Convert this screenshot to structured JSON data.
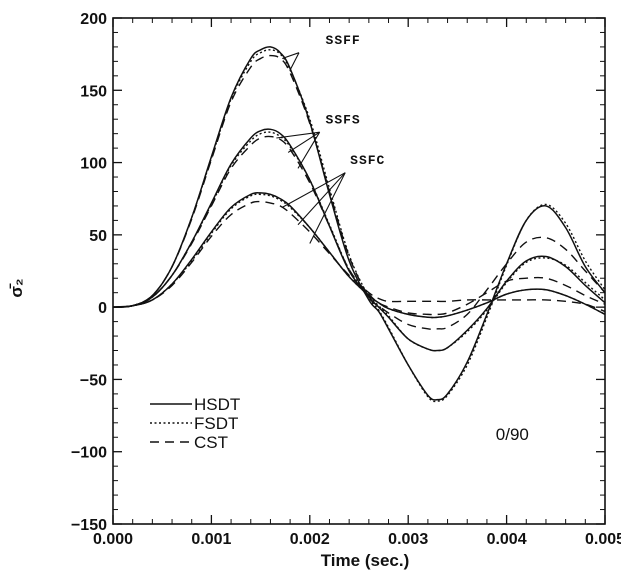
{
  "chart_data": {
    "type": "line",
    "title": "",
    "xlabel": "Time (sec.)",
    "ylabel": "σ̄₂",
    "xlim": [
      0,
      0.005
    ],
    "ylim": [
      -150,
      200
    ],
    "xticks": [
      0,
      0.001,
      0.002,
      0.003,
      0.004,
      0.005
    ],
    "xtick_labels": [
      "0.000",
      "0.001",
      "0.002",
      "0.003",
      "0.004",
      "0.005"
    ],
    "yticks": [
      -150,
      -100,
      -50,
      0,
      50,
      100,
      150,
      200
    ],
    "ytick_labels": [
      "-150",
      "-100",
      "-50",
      "0",
      "50",
      "100",
      "150",
      "200"
    ],
    "grid": false,
    "legend": {
      "placement": "lower-left",
      "entries": [
        {
          "label": "HSDT",
          "style": "solid"
        },
        {
          "label": "FSDT",
          "style": "dotted"
        },
        {
          "label": "CST",
          "style": "dashed"
        }
      ]
    },
    "annotations": [
      {
        "text": "SSFF",
        "target_group": "SSFF"
      },
      {
        "text": "SSFS",
        "target_group": "SSFS"
      },
      {
        "text": "SSFC",
        "target_group": "SSFC"
      },
      {
        "text": "0/90"
      }
    ],
    "x": [
      0,
      0.0002,
      0.0004,
      0.0006,
      0.0008,
      0.001,
      0.0012,
      0.0014,
      0.0015,
      0.0016,
      0.0017,
      0.0018,
      0.002,
      0.0022,
      0.0024,
      0.0026,
      0.0027,
      0.0028,
      0.003,
      0.0032,
      0.0033,
      0.0034,
      0.0036,
      0.0038,
      0.004,
      0.0042,
      0.0044,
      0.0046,
      0.0048,
      0.005
    ],
    "series": [
      {
        "group": "SSFF",
        "method": "HSDT",
        "style": "solid",
        "values": [
          0,
          1,
          8,
          28,
          62,
          104,
          145,
          172,
          178,
          180,
          176,
          165,
          128,
          78,
          32,
          5,
          -3,
          -15,
          -40,
          -61,
          -64,
          -60,
          -38,
          -5,
          30,
          60,
          70,
          55,
          28,
          10
        ]
      },
      {
        "group": "SSFF",
        "method": "FSDT",
        "style": "dotted",
        "values": [
          0,
          1,
          8,
          28,
          62,
          103,
          144,
          170,
          176,
          178,
          175,
          164,
          130,
          82,
          36,
          7,
          -2,
          -14,
          -40,
          -62,
          -65,
          -61,
          -40,
          -7,
          29,
          60,
          71,
          58,
          32,
          12
        ]
      },
      {
        "group": "SSFF",
        "method": "CST",
        "style": "dashed",
        "values": [
          0,
          1,
          8,
          28,
          61,
          102,
          142,
          166,
          172,
          174,
          172,
          162,
          127,
          80,
          35,
          7,
          1,
          -4,
          -12,
          -15,
          -15,
          -14,
          -5,
          12,
          30,
          45,
          48,
          40,
          25,
          10
        ]
      },
      {
        "group": "SSFS",
        "method": "HSDT",
        "style": "solid",
        "values": [
          0,
          1,
          7,
          22,
          45,
          72,
          99,
          117,
          122,
          123,
          120,
          112,
          88,
          56,
          25,
          7,
          0,
          -7,
          -22,
          -29,
          -30,
          -28,
          -16,
          -1,
          18,
          32,
          35,
          28,
          15,
          3
        ]
      },
      {
        "group": "SSFS",
        "method": "FSDT",
        "style": "dotted",
        "values": [
          0,
          1,
          7,
          22,
          45,
          71,
          98,
          115,
          120,
          121,
          118,
          111,
          88,
          57,
          26,
          8,
          1,
          -6,
          -22,
          -29,
          -30,
          -28,
          -17,
          -2,
          17,
          31,
          34,
          29,
          17,
          5
        ]
      },
      {
        "group": "SSFS",
        "method": "CST",
        "style": "dashed",
        "values": [
          0,
          1,
          7,
          22,
          44,
          70,
          96,
          112,
          117,
          118,
          116,
          109,
          86,
          56,
          26,
          9,
          3,
          0,
          -4,
          -5,
          -5,
          -4,
          2,
          10,
          18,
          20,
          20,
          15,
          8,
          2
        ]
      },
      {
        "group": "SSFC",
        "method": "HSDT",
        "style": "solid",
        "values": [
          0,
          1,
          5,
          16,
          33,
          52,
          69,
          78,
          79,
          78,
          75,
          70,
          55,
          38,
          21,
          8,
          3,
          -1,
          -5,
          -7,
          -7,
          -6,
          -2,
          3,
          9,
          12,
          12,
          8,
          2,
          -5
        ]
      },
      {
        "group": "SSFC",
        "method": "FSDT",
        "style": "dotted",
        "values": [
          0,
          1,
          5,
          16,
          32,
          51,
          68,
          77,
          78,
          77,
          74,
          69,
          55,
          38,
          21,
          8,
          3,
          -1,
          -5,
          -7,
          -7,
          -6,
          -2,
          3,
          9,
          12,
          12,
          8,
          2,
          -5
        ]
      },
      {
        "group": "SSFC",
        "method": "CST",
        "style": "dashed",
        "values": [
          0,
          1,
          5,
          15,
          31,
          49,
          64,
          72,
          73,
          72,
          70,
          65,
          52,
          37,
          22,
          10,
          6,
          4,
          4,
          4,
          4,
          4,
          5,
          5,
          5,
          5,
          5,
          4,
          2,
          -3
        ]
      }
    ]
  }
}
